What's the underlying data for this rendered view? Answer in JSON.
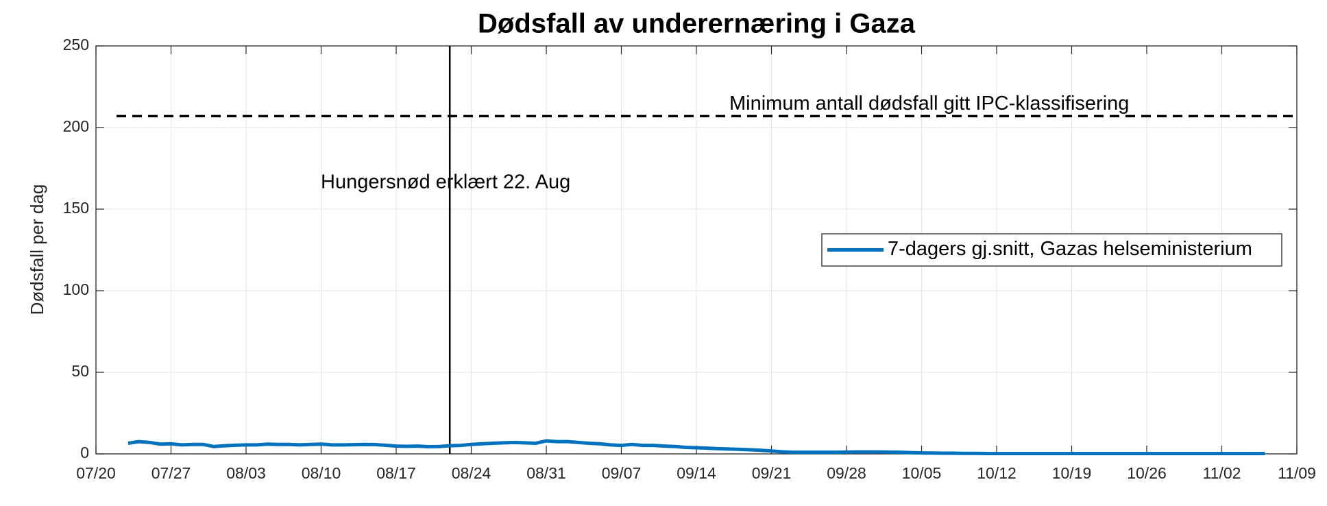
{
  "chart_data": {
    "type": "line",
    "title": "Dødsfall av underernæring i Gaza",
    "ylabel": "Dødsfall per dag",
    "x": [
      "07/23",
      "07/24",
      "07/25",
      "07/26",
      "07/27",
      "07/28",
      "07/29",
      "07/30",
      "07/31",
      "08/01",
      "08/02",
      "08/03",
      "08/04",
      "08/05",
      "08/06",
      "08/07",
      "08/08",
      "08/09",
      "08/10",
      "08/11",
      "08/12",
      "08/13",
      "08/14",
      "08/15",
      "08/16",
      "08/17",
      "08/18",
      "08/19",
      "08/20",
      "08/21",
      "08/22",
      "08/23",
      "08/24",
      "08/25",
      "08/26",
      "08/27",
      "08/28",
      "08/29",
      "08/30",
      "08/31",
      "09/01",
      "09/02",
      "09/03",
      "09/04",
      "09/05",
      "09/06",
      "09/07",
      "09/08",
      "09/09",
      "09/10",
      "09/11",
      "09/12",
      "09/13",
      "09/14",
      "09/15",
      "09/16",
      "09/17",
      "09/18",
      "09/19",
      "09/20",
      "09/21",
      "09/22",
      "09/23",
      "09/24",
      "09/25",
      "09/26",
      "09/27",
      "09/28",
      "09/29",
      "09/30",
      "10/01",
      "10/02",
      "10/03",
      "10/04",
      "10/05",
      "10/06",
      "10/07",
      "10/08",
      "10/09",
      "10/10",
      "10/11",
      "10/12",
      "10/13",
      "10/14",
      "10/15",
      "10/16",
      "10/17",
      "10/18",
      "10/19",
      "10/20",
      "10/21",
      "10/22",
      "10/23",
      "10/24",
      "10/25",
      "10/26",
      "10/27",
      "10/28",
      "10/29",
      "10/30",
      "10/31",
      "11/01",
      "11/02",
      "11/03",
      "11/04",
      "11/05",
      "11/06"
    ],
    "series": [
      {
        "name": "7-dagers gj.snitt, Gazas helseministerium",
        "color": "#0072bd",
        "values": [
          6.5,
          7.5,
          7,
          6,
          6.2,
          5.5,
          5.8,
          5.8,
          4.5,
          5,
          5.3,
          5.5,
          5.5,
          6,
          5.8,
          5.8,
          5.5,
          5.8,
          6,
          5.5,
          5.5,
          5.6,
          5.8,
          5.7,
          5.3,
          4.8,
          4.6,
          4.8,
          4.4,
          4.5,
          5,
          5.2,
          5.8,
          6.2,
          6.5,
          6.8,
          7,
          6.8,
          6.5,
          8,
          7.5,
          7.5,
          7,
          6.5,
          6.2,
          5.5,
          5.2,
          5.8,
          5.2,
          5.2,
          4.8,
          4.5,
          4,
          3.8,
          3.5,
          3.2,
          3,
          2.8,
          2.5,
          2.2,
          1.8,
          1.3,
          1,
          1,
          1,
          1,
          1,
          1.1,
          1.2,
          1.2,
          1.2,
          1.1,
          1,
          0.8,
          0.6,
          0.5,
          0.4,
          0.4,
          0.3,
          0.3,
          0.2,
          0.2,
          0.2,
          0.2,
          0.2,
          0.2,
          0.2,
          0.2,
          0.2,
          0.2,
          0.2,
          0.2,
          0.2,
          0.2,
          0.2,
          0.2,
          0.2,
          0.2,
          0.2,
          0.2,
          0.2,
          0.2,
          0.2,
          0.2,
          0.2,
          0.2,
          0.2
        ]
      }
    ],
    "xlim": [
      "07/20",
      "11/09"
    ],
    "xticks": [
      "07/20",
      "07/27",
      "08/03",
      "08/10",
      "08/17",
      "08/24",
      "08/31",
      "09/07",
      "09/14",
      "09/21",
      "09/28",
      "10/05",
      "10/12",
      "10/19",
      "10/26",
      "11/02",
      "11/09"
    ],
    "ylim": [
      0,
      250
    ],
    "yticks": [
      0,
      50,
      100,
      150,
      200,
      250
    ],
    "grid": true,
    "legend": "east",
    "hline": {
      "value": 207,
      "label": "Minimum antall dødsfall gitt IPC-klassifisering"
    },
    "vline": {
      "x": "08/22",
      "label": "Hungersnød erklært 22. Aug"
    }
  }
}
